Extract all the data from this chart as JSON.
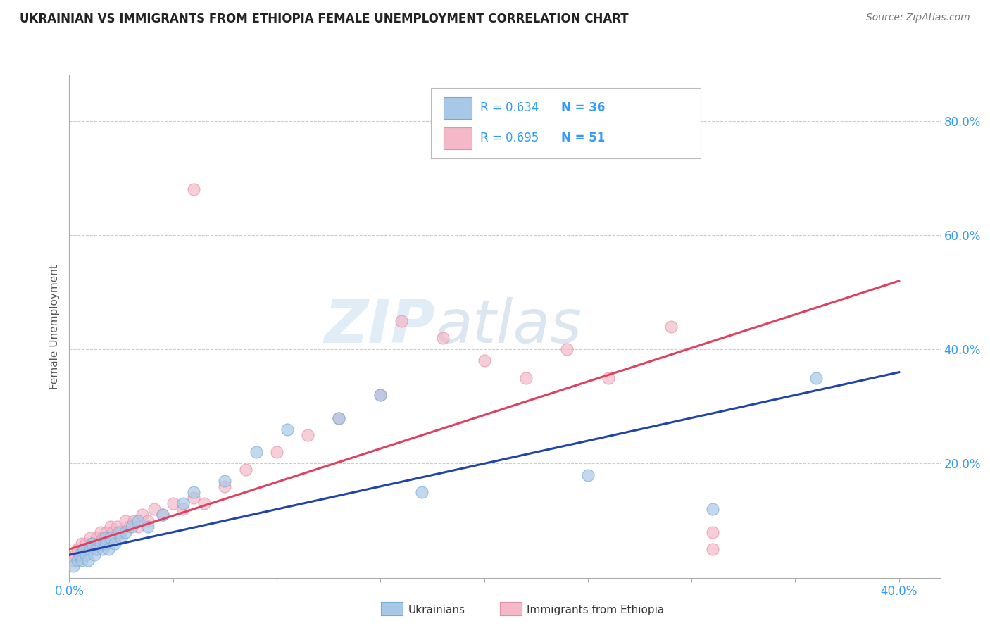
{
  "title": "UKRAINIAN VS IMMIGRANTS FROM ETHIOPIA FEMALE UNEMPLOYMENT CORRELATION CHART",
  "source": "Source: ZipAtlas.com",
  "ylabel": "Female Unemployment",
  "xlim": [
    0.0,
    0.42
  ],
  "ylim": [
    0.0,
    0.88
  ],
  "xticks": [
    0.0,
    0.05,
    0.1,
    0.15,
    0.2,
    0.25,
    0.3,
    0.35,
    0.4
  ],
  "xtick_labels": [
    "0.0%",
    "",
    "",
    "",
    "",
    "",
    "",
    "",
    "40.0%"
  ],
  "yticks": [
    0.0,
    0.2,
    0.4,
    0.6,
    0.8
  ],
  "ytick_labels": [
    "",
    "20.0%",
    "40.0%",
    "60.0%",
    "80.0%"
  ],
  "background_color": "#ffffff",
  "grid_color": "#cccccc",
  "watermark_zip": "ZIP",
  "watermark_atlas": "atlas",
  "ukrainians_color": "#a8c8e8",
  "ukraine_edge_color": "#7aaad0",
  "ethiopia_color": "#f4b8c8",
  "ethiopia_edge_color": "#e090a8",
  "blue_line_color": "#2244aa",
  "pink_line_color": "#e04060",
  "legend_R_blue": "R = 0.634",
  "legend_N_blue": "N = 36",
  "legend_R_pink": "R = 0.695",
  "legend_N_pink": "N = 51",
  "label_ukrainians": "Ukrainians",
  "label_ethiopia": "Immigrants from Ethiopia",
  "ukrainians_scatter_x": [
    0.002,
    0.004,
    0.005,
    0.006,
    0.007,
    0.008,
    0.009,
    0.01,
    0.011,
    0.012,
    0.013,
    0.015,
    0.016,
    0.017,
    0.018,
    0.019,
    0.02,
    0.022,
    0.024,
    0.025,
    0.027,
    0.03,
    0.033,
    0.038,
    0.045,
    0.055,
    0.06,
    0.075,
    0.09,
    0.105,
    0.13,
    0.15,
    0.17,
    0.25,
    0.31,
    0.36
  ],
  "ukrainians_scatter_y": [
    0.02,
    0.03,
    0.04,
    0.03,
    0.05,
    0.04,
    0.03,
    0.05,
    0.06,
    0.04,
    0.05,
    0.06,
    0.05,
    0.07,
    0.06,
    0.05,
    0.07,
    0.06,
    0.08,
    0.07,
    0.08,
    0.09,
    0.1,
    0.09,
    0.11,
    0.13,
    0.15,
    0.17,
    0.22,
    0.26,
    0.28,
    0.32,
    0.15,
    0.18,
    0.12,
    0.35
  ],
  "ethiopia_scatter_x": [
    0.002,
    0.003,
    0.004,
    0.005,
    0.006,
    0.007,
    0.008,
    0.009,
    0.01,
    0.011,
    0.012,
    0.013,
    0.014,
    0.015,
    0.016,
    0.017,
    0.018,
    0.019,
    0.02,
    0.021,
    0.022,
    0.023,
    0.025,
    0.027,
    0.029,
    0.031,
    0.033,
    0.035,
    0.038,
    0.041,
    0.045,
    0.05,
    0.055,
    0.06,
    0.065,
    0.075,
    0.085,
    0.1,
    0.115,
    0.13,
    0.15,
    0.16,
    0.18,
    0.2,
    0.22,
    0.24,
    0.26,
    0.29,
    0.31,
    0.06,
    0.31
  ],
  "ethiopia_scatter_y": [
    0.03,
    0.04,
    0.05,
    0.04,
    0.06,
    0.05,
    0.06,
    0.05,
    0.07,
    0.06,
    0.05,
    0.07,
    0.06,
    0.08,
    0.07,
    0.06,
    0.08,
    0.07,
    0.09,
    0.08,
    0.07,
    0.09,
    0.08,
    0.1,
    0.09,
    0.1,
    0.09,
    0.11,
    0.1,
    0.12,
    0.11,
    0.13,
    0.12,
    0.14,
    0.13,
    0.16,
    0.19,
    0.22,
    0.25,
    0.28,
    0.32,
    0.45,
    0.42,
    0.38,
    0.35,
    0.4,
    0.35,
    0.44,
    0.05,
    0.68,
    0.08
  ],
  "blue_line_x": [
    0.0,
    0.4
  ],
  "blue_line_y": [
    0.04,
    0.36
  ],
  "pink_line_x": [
    0.0,
    0.4
  ],
  "pink_line_y": [
    0.05,
    0.52
  ]
}
